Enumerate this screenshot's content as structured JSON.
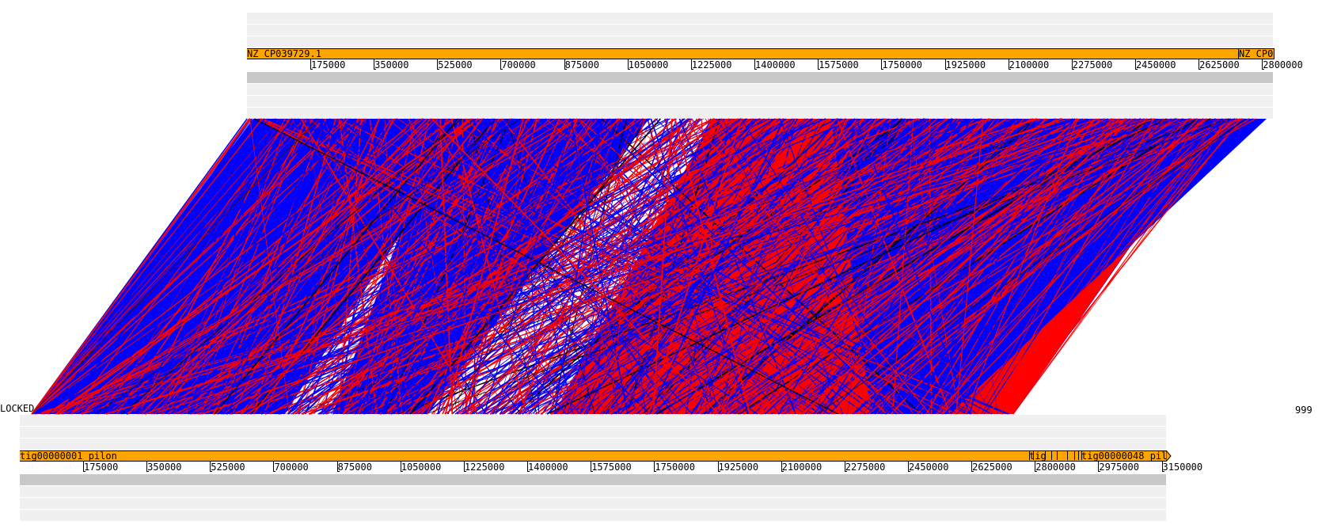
{
  "top_track": {
    "name": "NZ_CP039729.1",
    "name_tail": "NZ_CP0",
    "ticks": [
      "175000",
      "350000",
      "525000",
      "700000",
      "875000",
      "1050000",
      "1225000",
      "1400000",
      "1575000",
      "1750000",
      "1925000",
      "2100000",
      "2275000",
      "2450000",
      "2625000",
      "2800000"
    ]
  },
  "bottom_track": {
    "name": "tig00000001_pilon",
    "name_tail": "tig00000048_pil",
    "name_mid": "tig",
    "ticks": [
      "175000",
      "350000",
      "525000",
      "700000",
      "875000",
      "1050000",
      "1225000",
      "1400000",
      "1575000",
      "1750000",
      "1925000",
      "2100000",
      "2275000",
      "2450000",
      "2625000",
      "2800000",
      "2975000",
      "3150000"
    ]
  },
  "left_label": "LOCKED",
  "right_label": "999",
  "colors": {
    "forward": "#ff0000",
    "reverse": "#0000ff",
    "bar": "#ffa500",
    "band": "#f0f0f0",
    "band_dark": "#c8c8c8"
  }
}
